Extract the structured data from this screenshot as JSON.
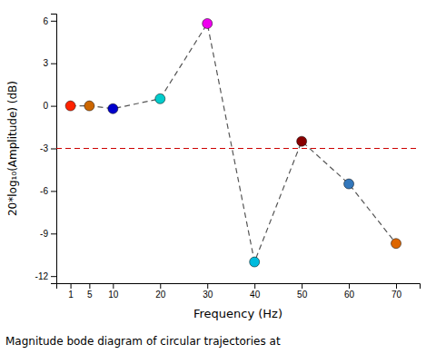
{
  "chart_data": {
    "type": "scatter",
    "x": [
      1,
      5,
      10,
      20,
      30,
      40,
      50,
      60,
      70
    ],
    "values": [
      0.0,
      0.0,
      -0.2,
      0.5,
      5.8,
      -11.0,
      -2.5,
      -5.5,
      -9.7
    ],
    "colors": [
      "#ff2200",
      "#cc6600",
      "#0000cc",
      "#00cccc",
      "#ee00ee",
      "#00bbdd",
      "#880000",
      "#3377bb",
      "#dd6600"
    ],
    "color": "#555555",
    "line_style": "dashed",
    "marker": "circle",
    "reference_lines": [
      {
        "y": -3,
        "color": "#cc0000",
        "line_style": "dashed"
      }
    ],
    "xlabel": "Frequency (Hz)",
    "ylabel": "20*log₁₀(Amplitude) (dB)",
    "caption": "Magnitude bode diagram of circular trajectories at",
    "xlim": [
      -2,
      75
    ],
    "ylim": [
      -12.5,
      6.5
    ],
    "xticks": [
      1,
      5,
      10,
      20,
      30,
      40,
      50,
      60,
      70
    ],
    "yticks": [
      -12,
      -9,
      -6,
      -3,
      0,
      3,
      6
    ],
    "grid": false
  }
}
